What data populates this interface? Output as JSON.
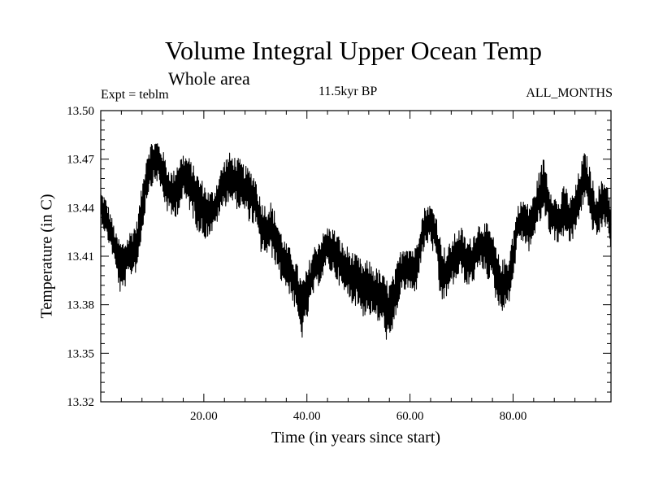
{
  "chart_data": {
    "type": "line",
    "title": "Volume Integral Upper Ocean Temp",
    "subtitle": "Whole area",
    "experiment": "Expt = teblm",
    "period": "11.5kyr BP",
    "months": "ALL_MONTHS",
    "xlabel": "Time (in years since start)",
    "ylabel": "Temperature (in C)",
    "xlim": [
      0,
      99
    ],
    "ylim": [
      13.32,
      13.5
    ],
    "x_ticks": [
      20,
      40,
      60,
      80
    ],
    "x_tick_labels": [
      "20.00",
      "40.00",
      "60.00",
      "80.00"
    ],
    "y_ticks": [
      13.32,
      13.35,
      13.38,
      13.41,
      13.44,
      13.47,
      13.5
    ],
    "y_tick_labels": [
      "13.32",
      "13.35",
      "13.38",
      "13.41",
      "13.44",
      "13.47",
      "13.50"
    ],
    "series": [
      {
        "name": "Temperature",
        "color": "#000000",
        "x": [
          0,
          1,
          2,
          3,
          4,
          5,
          6,
          7,
          8,
          9,
          10,
          11,
          12,
          13,
          14,
          15,
          16,
          17,
          18,
          19,
          20,
          21,
          22,
          23,
          24,
          25,
          26,
          27,
          28,
          29,
          30,
          31,
          32,
          33,
          34,
          35,
          36,
          37,
          38,
          39,
          40,
          41,
          42,
          43,
          44,
          45,
          46,
          47,
          48,
          49,
          50,
          51,
          52,
          53,
          54,
          55,
          56,
          57,
          58,
          59,
          60,
          61,
          62,
          63,
          64,
          65,
          66,
          67,
          68,
          69,
          70,
          71,
          72,
          73,
          74,
          75,
          76,
          77,
          78,
          79,
          80,
          81,
          82,
          83,
          84,
          85,
          86,
          87,
          88,
          89,
          90,
          91,
          92,
          93,
          94,
          95,
          96,
          97,
          98,
          99
        ],
        "mean": [
          13.443,
          13.433,
          13.425,
          13.412,
          13.402,
          13.408,
          13.412,
          13.418,
          13.44,
          13.462,
          13.468,
          13.47,
          13.463,
          13.452,
          13.448,
          13.455,
          13.46,
          13.458,
          13.452,
          13.445,
          13.44,
          13.436,
          13.438,
          13.448,
          13.456,
          13.46,
          13.457,
          13.455,
          13.452,
          13.45,
          13.445,
          13.43,
          13.426,
          13.427,
          13.42,
          13.41,
          13.404,
          13.4,
          13.39,
          13.378,
          13.385,
          13.398,
          13.405,
          13.41,
          13.418,
          13.414,
          13.41,
          13.402,
          13.4,
          13.398,
          13.395,
          13.39,
          13.392,
          13.388,
          13.386,
          13.382,
          13.376,
          13.385,
          13.398,
          13.404,
          13.402,
          13.4,
          13.418,
          13.43,
          13.432,
          13.424,
          13.405,
          13.398,
          13.406,
          13.412,
          13.414,
          13.406,
          13.408,
          13.415,
          13.418,
          13.414,
          13.41,
          13.396,
          13.392,
          13.394,
          13.41,
          13.432,
          13.434,
          13.428,
          13.435,
          13.446,
          13.458,
          13.44,
          13.435,
          13.43,
          13.44,
          13.432,
          13.438,
          13.45,
          13.46,
          13.448,
          13.436,
          13.44,
          13.444,
          13.43
        ],
        "low": [
          13.432,
          13.422,
          13.414,
          13.4,
          13.382,
          13.394,
          13.398,
          13.4,
          13.422,
          13.446,
          13.454,
          13.456,
          13.446,
          13.436,
          13.432,
          13.436,
          13.444,
          13.44,
          13.432,
          13.424,
          13.42,
          13.422,
          13.426,
          13.434,
          13.44,
          13.444,
          13.44,
          13.438,
          13.436,
          13.43,
          13.428,
          13.412,
          13.41,
          13.41,
          13.404,
          13.394,
          13.39,
          13.384,
          13.372,
          13.358,
          13.37,
          13.384,
          13.39,
          13.396,
          13.402,
          13.398,
          13.394,
          13.386,
          13.384,
          13.38,
          13.378,
          13.372,
          13.374,
          13.37,
          13.368,
          13.364,
          13.35,
          13.366,
          13.384,
          13.388,
          13.388,
          13.384,
          13.404,
          13.416,
          13.418,
          13.404,
          13.378,
          13.384,
          13.39,
          13.394,
          13.398,
          13.39,
          13.392,
          13.398,
          13.402,
          13.396,
          13.392,
          13.378,
          13.376,
          13.378,
          13.394,
          13.42,
          13.418,
          13.412,
          13.42,
          13.428,
          13.436,
          13.424,
          13.42,
          13.416,
          13.424,
          13.416,
          13.422,
          13.434,
          13.446,
          13.43,
          13.42,
          13.424,
          13.428,
          13.414
        ],
        "high": [
          13.45,
          13.446,
          13.436,
          13.424,
          13.42,
          13.422,
          13.428,
          13.432,
          13.454,
          13.476,
          13.482,
          13.482,
          13.476,
          13.466,
          13.462,
          13.47,
          13.474,
          13.472,
          13.466,
          13.46,
          13.456,
          13.45,
          13.452,
          13.462,
          13.47,
          13.474,
          13.472,
          13.47,
          13.466,
          13.464,
          13.46,
          13.446,
          13.442,
          13.444,
          13.436,
          13.426,
          13.418,
          13.414,
          13.406,
          13.396,
          13.402,
          13.414,
          13.42,
          13.424,
          13.428,
          13.428,
          13.424,
          13.418,
          13.416,
          13.412,
          13.41,
          13.406,
          13.408,
          13.404,
          13.402,
          13.398,
          13.394,
          13.4,
          13.412,
          13.42,
          13.418,
          13.416,
          13.432,
          13.442,
          13.442,
          13.438,
          13.42,
          13.414,
          13.42,
          13.426,
          13.428,
          13.42,
          13.422,
          13.43,
          13.432,
          13.43,
          13.424,
          13.412,
          13.408,
          13.41,
          13.426,
          13.442,
          13.446,
          13.442,
          13.448,
          13.462,
          13.472,
          13.456,
          13.448,
          13.444,
          13.456,
          13.446,
          13.452,
          13.466,
          13.476,
          13.464,
          13.45,
          13.456,
          13.46,
          13.446
        ]
      }
    ]
  }
}
